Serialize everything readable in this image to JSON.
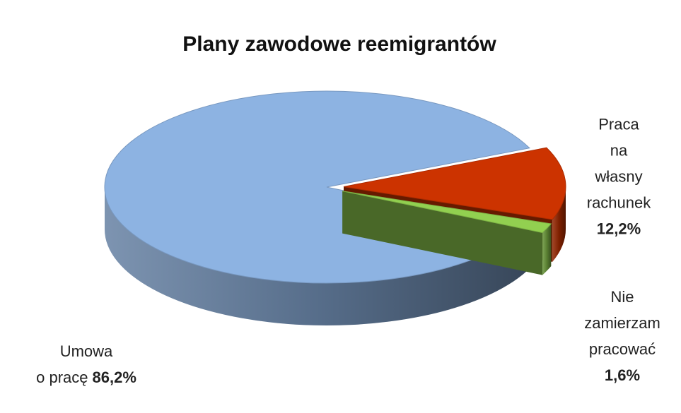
{
  "chart_data": {
    "type": "pie",
    "title": "Plany zawodowe reemigrantów",
    "categories": [
      "Umowa\no pracę",
      "Praca\nna własny\nrachunek",
      "Nie zamierzam\npracować"
    ],
    "values": [
      86.2,
      12.2,
      1.6
    ],
    "value_labels": [
      "86,2%",
      "12,2%",
      "1,6%"
    ],
    "colors": [
      "#8db3e2",
      "#cc3300",
      "#92d050"
    ]
  }
}
